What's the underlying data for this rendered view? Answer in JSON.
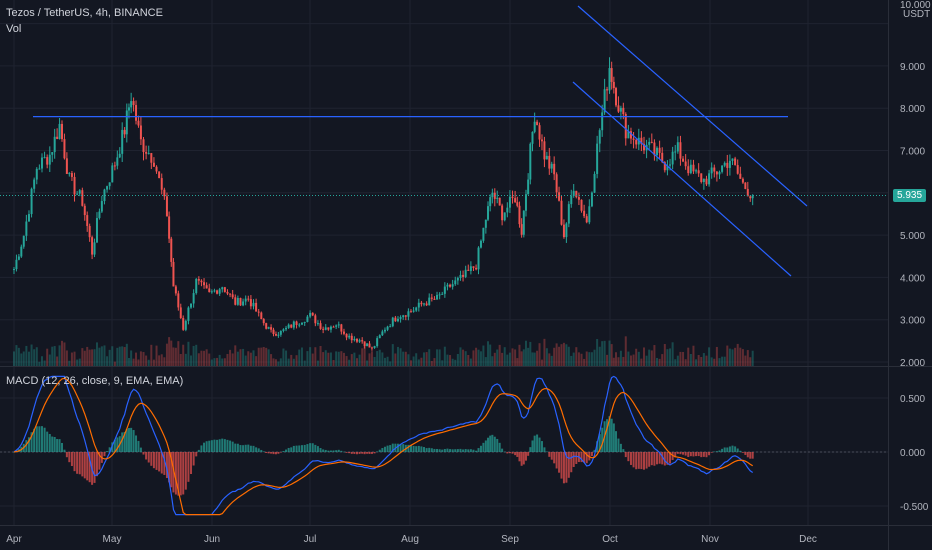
{
  "header": {
    "symbol": "Tezos / TetherUS, 4h, BINANCE",
    "volume_label": "Vol",
    "currency": "USDT"
  },
  "macd": {
    "label": "MACD (12, 26, close, 9, EMA, EMA)"
  },
  "colors": {
    "background": "#131722",
    "grid": "#1f2330",
    "up": "#26a69a",
    "down": "#ef5350",
    "trendline": "#2962ff",
    "macd_line": "#2962ff",
    "signal_line": "#ff6d00",
    "price_tag": "#26a69a"
  },
  "chart_data": [
    {
      "type": "candlestick",
      "title": "Tezos / TetherUS, 4h, BINANCE",
      "last_price": "5.935",
      "ylim": [
        1.6,
        10.0
      ],
      "y_ticks": [
        "10.000",
        "9.000",
        "8.000",
        "7.000",
        "6.000",
        "5.000",
        "4.000",
        "3.000",
        "2.000"
      ],
      "x_ticks": [
        "Apr",
        "May",
        "Jun",
        "Jul",
        "Aug",
        "Sep",
        "Oct",
        "Nov",
        "Dec"
      ],
      "price_path": [
        [
          "Apr 1",
          4.2
        ],
        [
          "Apr 4",
          5.0
        ],
        [
          "Apr 8",
          6.6
        ],
        [
          "Apr 12",
          6.9
        ],
        [
          "Apr 15",
          7.6
        ],
        [
          "Apr 18",
          6.3
        ],
        [
          "Apr 22",
          5.8
        ],
        [
          "Apr 25",
          4.6
        ],
        [
          "Apr 28",
          5.9
        ],
        [
          "May 2",
          6.7
        ],
        [
          "May 5",
          7.5
        ],
        [
          "May 7",
          8.3
        ],
        [
          "May 10",
          7.2
        ],
        [
          "May 14",
          6.8
        ],
        [
          "May 18",
          5.5
        ],
        [
          "May 20",
          3.8
        ],
        [
          "May 23",
          2.8
        ],
        [
          "May 27",
          3.9
        ],
        [
          "May 31",
          3.6
        ],
        [
          "Jun 4",
          3.8
        ],
        [
          "Jun 8",
          3.4
        ],
        [
          "Jun 12",
          3.5
        ],
        [
          "Jun 16",
          3.0
        ],
        [
          "Jun 19",
          2.7
        ],
        [
          "Jun 22",
          2.7
        ],
        [
          "Jun 26",
          2.9
        ],
        [
          "Jul 1",
          3.1
        ],
        [
          "Jul 5",
          2.8
        ],
        [
          "Jul 9",
          2.9
        ],
        [
          "Jul 13",
          2.6
        ],
        [
          "Jul 17",
          2.5
        ],
        [
          "Jul 20",
          2.3
        ],
        [
          "Jul 24",
          2.8
        ],
        [
          "Jul 28",
          3.1
        ],
        [
          "Aug 1",
          3.2
        ],
        [
          "Aug 5",
          3.4
        ],
        [
          "Aug 9",
          3.5
        ],
        [
          "Aug 13",
          3.8
        ],
        [
          "Aug 17",
          4.0
        ],
        [
          "Aug 21",
          4.3
        ],
        [
          "Aug 24",
          5.4
        ],
        [
          "Aug 26",
          6.0
        ],
        [
          "Aug 29",
          5.5
        ],
        [
          "Sep 2",
          5.9
        ],
        [
          "Sep 4",
          5.1
        ],
        [
          "Sep 6",
          6.5
        ],
        [
          "Sep 8",
          7.9
        ],
        [
          "Sep 11",
          6.9
        ],
        [
          "Sep 14",
          6.4
        ],
        [
          "Sep 17",
          5.0
        ],
        [
          "Sep 20",
          6.2
        ],
        [
          "Sep 24",
          5.3
        ],
        [
          "Sep 28",
          7.5
        ],
        [
          "Oct 1",
          9.0
        ],
        [
          "Oct 3",
          8.3
        ],
        [
          "Oct 6",
          7.5
        ],
        [
          "Oct 10",
          7.2
        ],
        [
          "Oct 14",
          7.0
        ],
        [
          "Oct 18",
          6.7
        ],
        [
          "Oct 22",
          7.0
        ],
        [
          "Oct 26",
          6.5
        ],
        [
          "Oct 30",
          6.3
        ],
        [
          "Nov 3",
          6.5
        ],
        [
          "Nov 7",
          6.8
        ],
        [
          "Nov 11",
          6.2
        ],
        [
          "Nov 14",
          5.935
        ]
      ]
    },
    {
      "type": "line",
      "title": "MACD (12, 26, close, 9, EMA, EMA)",
      "ylim": [
        -0.6,
        0.72
      ],
      "y_ticks": [
        "0.500",
        "0.000",
        "-0.500"
      ],
      "series": [
        {
          "name": "MACD",
          "color": "#2962ff"
        },
        {
          "name": "Signal",
          "color": "#ff6d00"
        }
      ]
    }
  ]
}
